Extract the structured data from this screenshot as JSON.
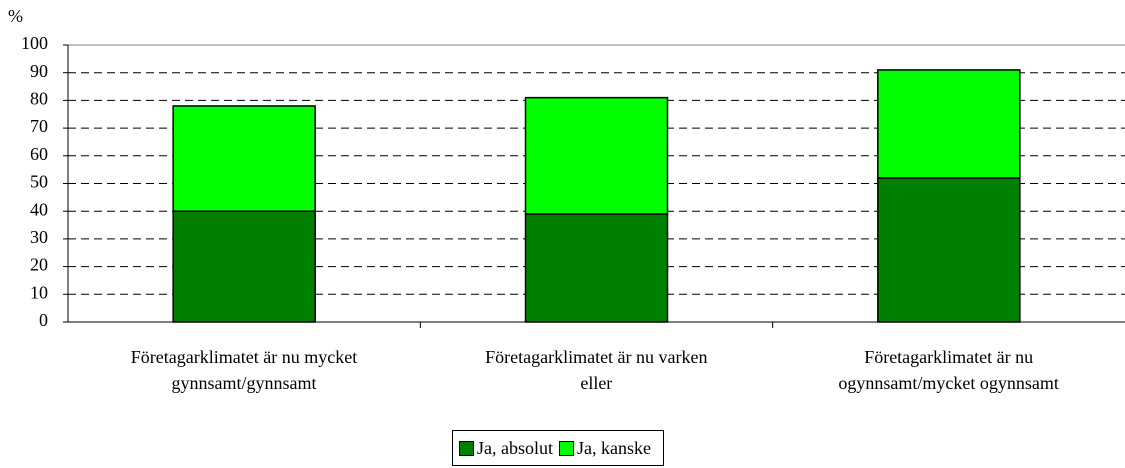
{
  "chart_data": {
    "type": "stacked_bar",
    "y_label": "%",
    "categories": [
      "Företagarklimatet är nu mycket\ngynnsamt/gynnsamt",
      "Företagarklimatet är nu varken\neller",
      "Företagarklimatet är nu\nogynnsamt/mycket ogynnsamt"
    ],
    "series": [
      {
        "name": "Ja, absolut",
        "color": "#008000",
        "values": [
          40,
          39,
          52
        ]
      },
      {
        "name": "Ja, kanske",
        "color": "#00ff00",
        "values": [
          38,
          42,
          39
        ]
      }
    ],
    "ylim": [
      0,
      100
    ],
    "yticks": [
      0,
      10,
      20,
      30,
      40,
      50,
      60,
      70,
      80,
      90,
      100
    ],
    "grid": true,
    "legend": "bottom"
  }
}
